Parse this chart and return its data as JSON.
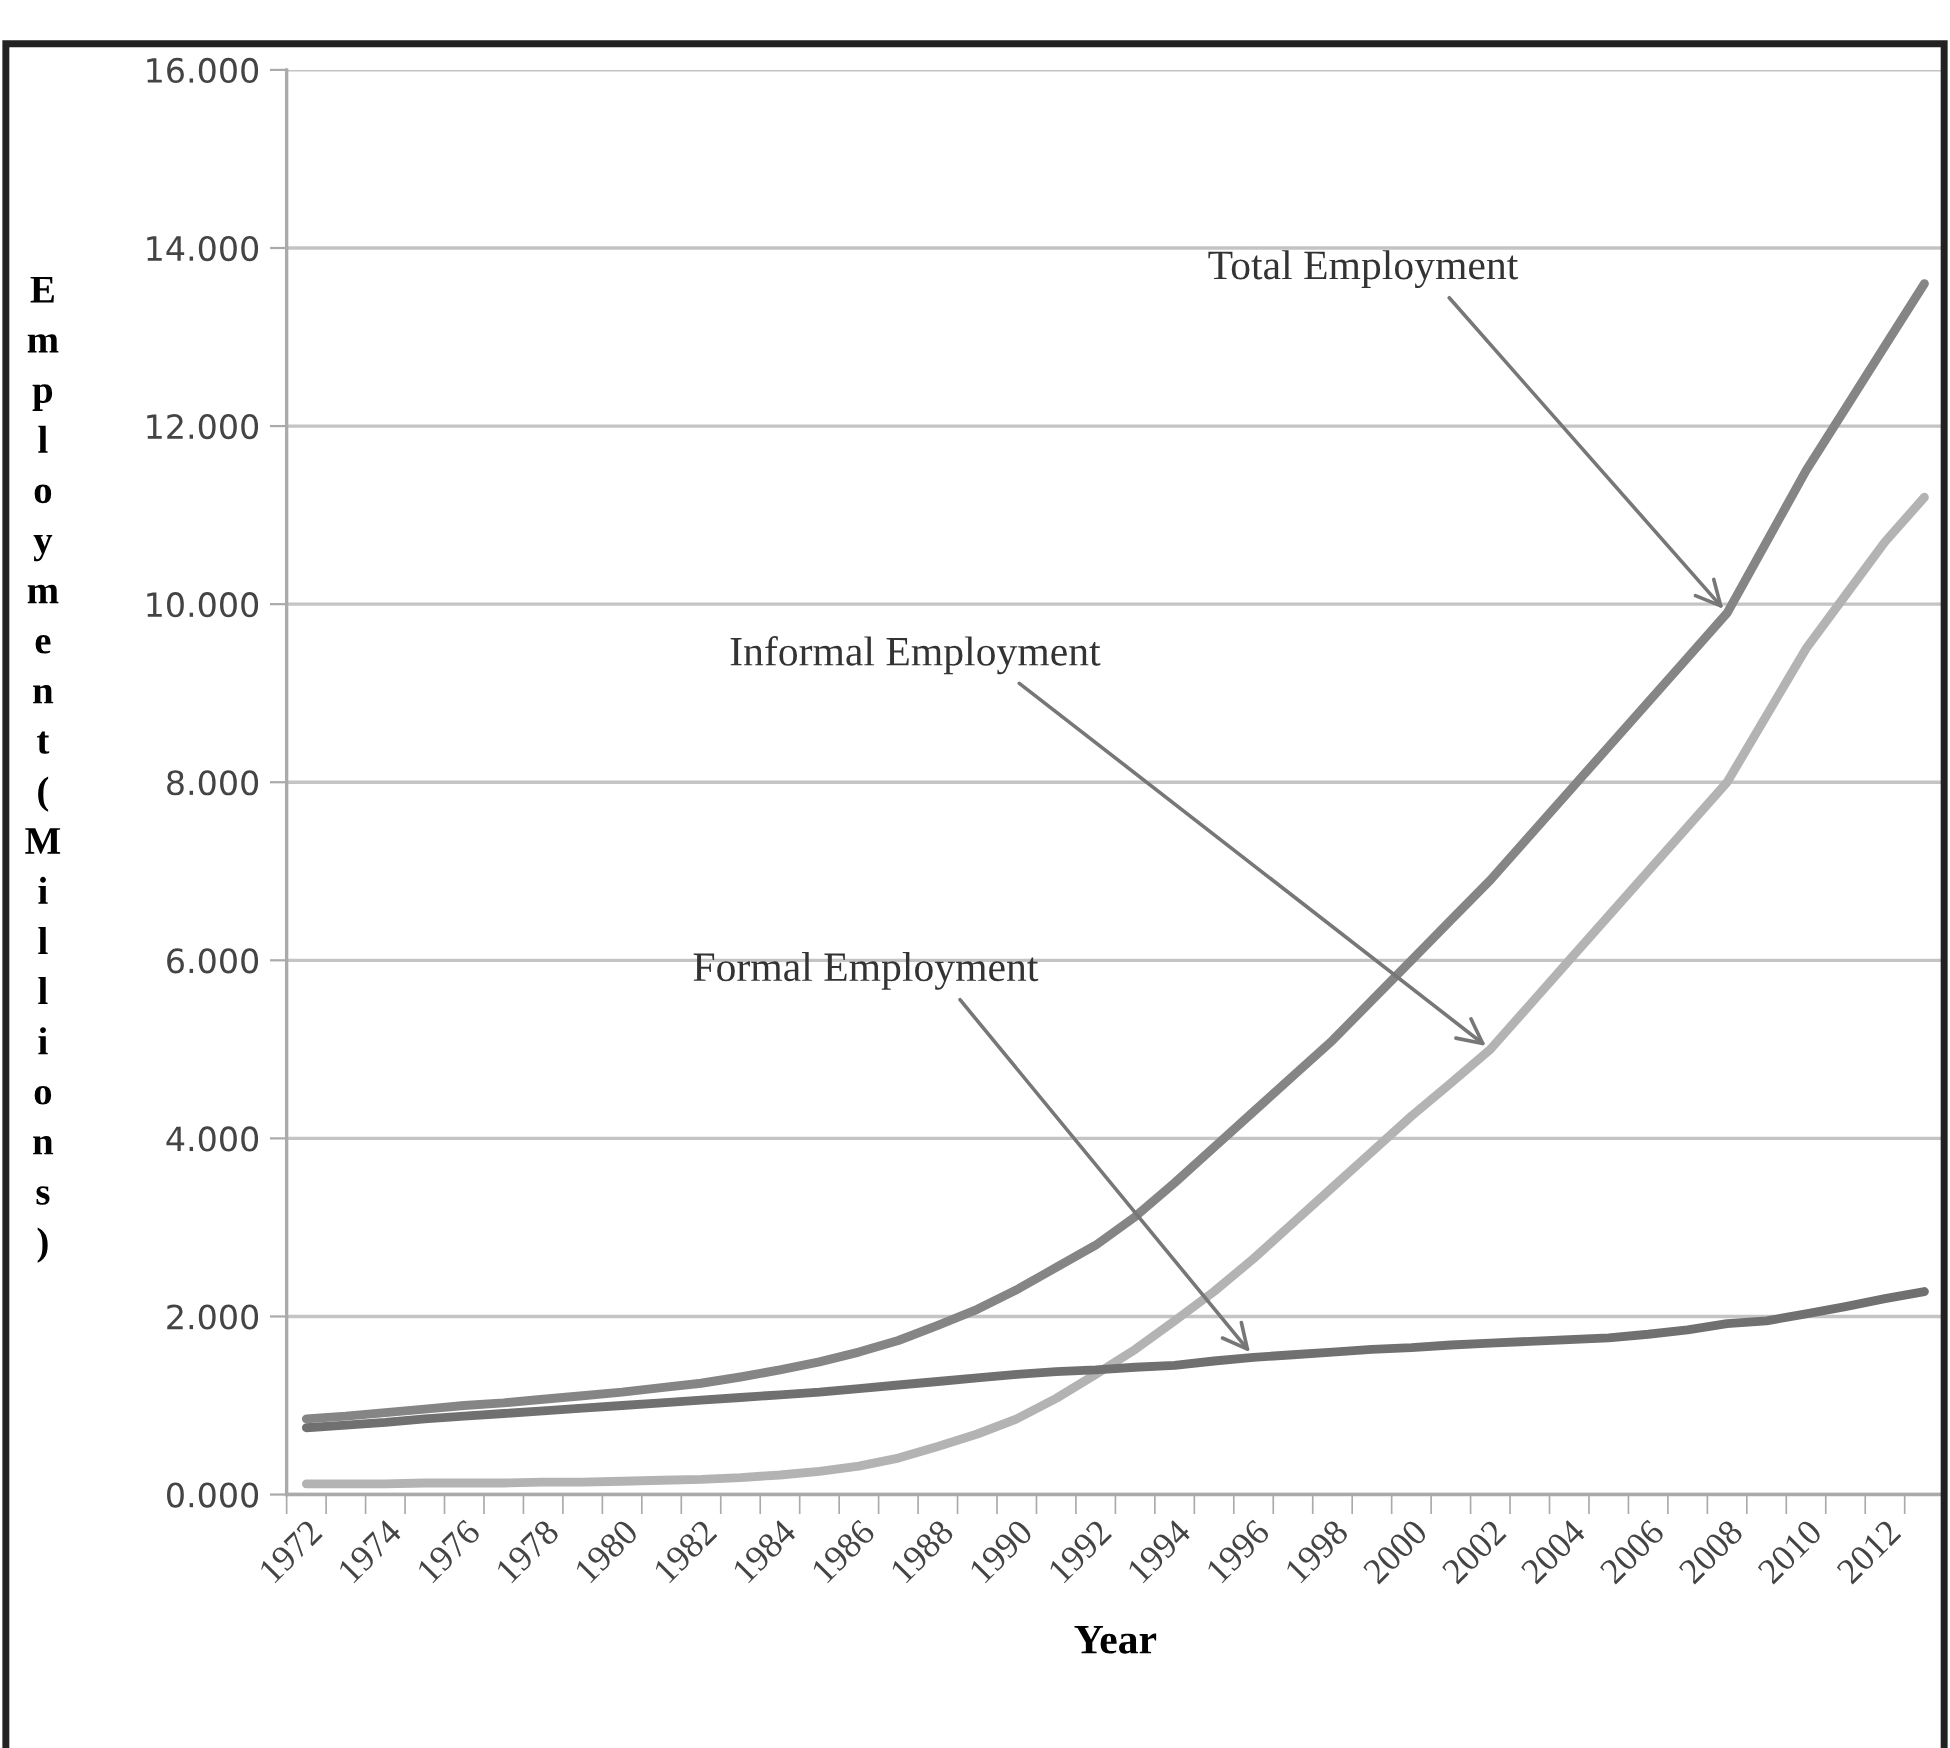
{
  "chart_data": {
    "type": "line",
    "xlabel": "Year",
    "ylabel": "Employment (Millions)",
    "categories": [
      "1972",
      null,
      "1974",
      null,
      "1976",
      null,
      "1978",
      null,
      "1980",
      null,
      "1982",
      null,
      "1984",
      null,
      "1986",
      null,
      "1988",
      null,
      "1990",
      null,
      "1992",
      null,
      "1994",
      null,
      "1996",
      null,
      "1998",
      null,
      "2000",
      null,
      "2002",
      null,
      "2004",
      null,
      "2006",
      null,
      "2008",
      null,
      "2010",
      null,
      "2012",
      null
    ],
    "series": [
      {
        "color": "#858585",
        "values": [
          0.85,
          0.88,
          0.92,
          0.96,
          1.0,
          1.03,
          1.07,
          1.11,
          1.15,
          1.2,
          1.25,
          1.32,
          1.4,
          1.49,
          1.6,
          1.73,
          1.9,
          2.08,
          2.3,
          2.55,
          2.8,
          3.12,
          3.5,
          3.9,
          4.3,
          4.7,
          5.1,
          5.55,
          6.0,
          6.45,
          6.9,
          7.4,
          7.9,
          8.4,
          8.9,
          9.4,
          9.9,
          10.7,
          11.5,
          12.2,
          12.9,
          13.6
        ]
      },
      {
        "color": "#b3b3b3",
        "values": [
          0.12,
          0.12,
          0.12,
          0.13,
          0.13,
          0.13,
          0.14,
          0.14,
          0.15,
          0.16,
          0.17,
          0.19,
          0.22,
          0.26,
          0.32,
          0.41,
          0.54,
          0.68,
          0.85,
          1.08,
          1.35,
          1.63,
          1.95,
          2.28,
          2.65,
          3.05,
          3.45,
          3.85,
          4.25,
          4.62,
          5.0,
          5.5,
          6.0,
          6.5,
          7.0,
          7.5,
          8.0,
          8.75,
          9.5,
          10.1,
          10.7,
          11.2
        ]
      },
      {
        "color": "#707070",
        "values": [
          0.75,
          0.78,
          0.81,
          0.85,
          0.88,
          0.91,
          0.94,
          0.97,
          1.0,
          1.03,
          1.06,
          1.09,
          1.12,
          1.15,
          1.19,
          1.23,
          1.27,
          1.31,
          1.35,
          1.38,
          1.4,
          1.43,
          1.45,
          1.5,
          1.54,
          1.57,
          1.6,
          1.63,
          1.65,
          1.68,
          1.7,
          1.72,
          1.74,
          1.76,
          1.8,
          1.85,
          1.92,
          1.95,
          2.03,
          2.11,
          2.2,
          2.28
        ]
      }
    ],
    "ylim": [
      0,
      16
    ],
    "yticks": [
      {
        "value": 0,
        "label": "0.000"
      },
      {
        "value": 2,
        "label": "2.000"
      },
      {
        "value": 4,
        "label": "4.000"
      },
      {
        "value": 6,
        "label": "6.000"
      },
      {
        "value": 8,
        "label": "8.000"
      },
      {
        "value": 10,
        "label": "10.000"
      },
      {
        "value": 12,
        "label": "12.000"
      },
      {
        "value": 14,
        "label": "14.000"
      },
      {
        "value": 16,
        "label": "16.000"
      }
    ],
    "grid": "y",
    "legend": false,
    "marker": "none",
    "line_style": "solid",
    "annotations": [
      {
        "text": "Total Employment",
        "x": "2008",
        "y": 9.9
      },
      {
        "text": "Informal Employment",
        "x": "2002",
        "y": 5.0
      },
      {
        "text": "Formal Employment",
        "x": "1996",
        "y": 1.55
      }
    ]
  }
}
